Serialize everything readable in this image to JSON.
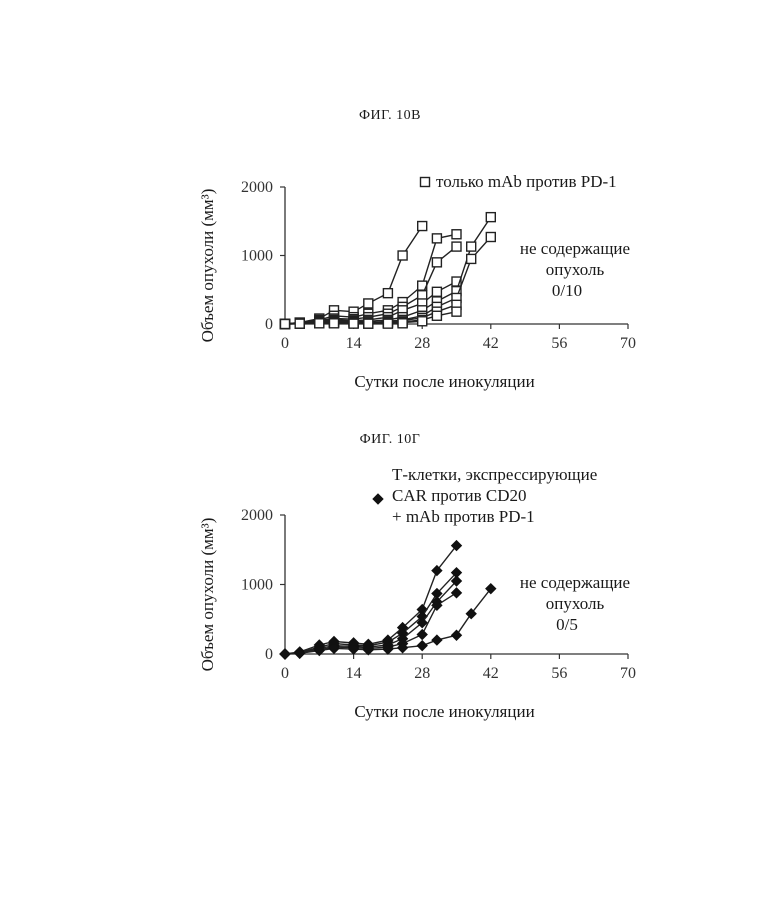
{
  "figures": {
    "fig1_title": "ФИГ. 10В",
    "fig2_title": "ФИГ. 10Г"
  },
  "chart_data": [
    {
      "type": "line",
      "xlabel": "Сутки после инокуляции",
      "ylabel": "Объем опухоли (мм³)",
      "xlim": [
        0,
        70
      ],
      "ylim": [
        0,
        2000
      ],
      "x_ticks": [
        "0",
        "14",
        "28",
        "42",
        "56",
        "70"
      ],
      "y_ticks": [
        "0",
        "1000",
        "2000"
      ],
      "marker": "square-open",
      "legend": {
        "label": "только mAb против PD-1",
        "position": "top-right"
      },
      "annotation": [
        "не содержащие",
        "опухоль",
        "0/10"
      ],
      "series": [
        {
          "x": [
            0,
            3,
            7,
            10,
            14,
            17,
            21,
            24,
            28
          ],
          "y": [
            0,
            20,
            80,
            200,
            180,
            300,
            450,
            1000,
            1430
          ]
        },
        {
          "x": [
            0,
            3,
            7,
            10,
            14,
            17,
            21,
            24,
            28,
            31,
            35
          ],
          "y": [
            0,
            20,
            60,
            120,
            100,
            150,
            200,
            320,
            560,
            1250,
            1310
          ]
        },
        {
          "x": [
            0,
            3,
            7,
            10,
            14,
            17,
            21,
            24,
            28,
            31,
            35
          ],
          "y": [
            0,
            20,
            50,
            80,
            70,
            100,
            150,
            250,
            420,
            900,
            1130
          ]
        },
        {
          "x": [
            0,
            3,
            7,
            10,
            14,
            17,
            21,
            24,
            28,
            31,
            35
          ],
          "y": [
            0,
            15,
            40,
            60,
            50,
            60,
            100,
            200,
            300,
            470,
            620
          ]
        },
        {
          "x": [
            0,
            3,
            7,
            10,
            14,
            17,
            21,
            24,
            28,
            31,
            35,
            38,
            42
          ],
          "y": [
            0,
            10,
            30,
            50,
            40,
            40,
            60,
            100,
            200,
            330,
            480,
            1130,
            1560
          ]
        },
        {
          "x": [
            0,
            3,
            7,
            10,
            14,
            17,
            21,
            24,
            28,
            31,
            35,
            38,
            42
          ],
          "y": [
            0,
            10,
            20,
            40,
            30,
            20,
            40,
            60,
            120,
            250,
            380,
            950,
            1270
          ]
        },
        {
          "x": [
            0,
            3,
            7,
            10,
            14,
            17,
            21,
            24,
            28,
            31,
            35
          ],
          "y": [
            0,
            10,
            20,
            30,
            20,
            20,
            30,
            50,
            90,
            180,
            280
          ]
        },
        {
          "x": [
            0,
            3,
            7,
            10,
            14,
            17,
            21,
            24,
            28,
            31,
            35
          ],
          "y": [
            0,
            5,
            15,
            20,
            15,
            10,
            20,
            30,
            60,
            120,
            180
          ]
        },
        {
          "x": [
            0,
            3,
            7,
            10,
            14,
            17,
            21,
            24,
            28
          ],
          "y": [
            0,
            5,
            10,
            15,
            10,
            5,
            10,
            20,
            40
          ]
        },
        {
          "x": [
            0,
            3,
            7,
            10,
            14,
            17,
            21,
            24
          ],
          "y": [
            0,
            5,
            10,
            10,
            5,
            5,
            5,
            10
          ]
        }
      ]
    },
    {
      "type": "line",
      "xlabel": "Сутки после инокуляции",
      "ylabel": "Объем опухоли (мм³)",
      "xlim": [
        0,
        70
      ],
      "ylim": [
        0,
        2000
      ],
      "x_ticks": [
        "0",
        "14",
        "28",
        "42",
        "56",
        "70"
      ],
      "y_ticks": [
        "0",
        "1000",
        "2000"
      ],
      "marker": "diamond-filled",
      "legend": {
        "label": [
          "Т-клетки, экспрессирующие",
          "CAR против CD20",
          "+ mAb против PD-1"
        ],
        "position": "top-right"
      },
      "annotation": [
        "не содержащие",
        "опухоль",
        "0/5"
      ],
      "series": [
        {
          "x": [
            0,
            3,
            7,
            10,
            14,
            17,
            21,
            24,
            28,
            31,
            35
          ],
          "y": [
            0,
            30,
            130,
            180,
            160,
            140,
            200,
            380,
            640,
            1200,
            1560
          ]
        },
        {
          "x": [
            0,
            3,
            7,
            10,
            14,
            17,
            21,
            24,
            28,
            31,
            35
          ],
          "y": [
            0,
            20,
            100,
            150,
            130,
            120,
            170,
            300,
            540,
            870,
            1170
          ]
        },
        {
          "x": [
            0,
            3,
            7,
            10,
            14,
            17,
            21,
            24,
            28,
            31,
            35
          ],
          "y": [
            0,
            20,
            80,
            120,
            110,
            100,
            130,
            220,
            450,
            750,
            1050
          ]
        },
        {
          "x": [
            0,
            3,
            7,
            10,
            14,
            17,
            21,
            24,
            28,
            31,
            35
          ],
          "y": [
            0,
            10,
            60,
            100,
            90,
            80,
            100,
            150,
            280,
            700,
            880
          ]
        },
        {
          "x": [
            0,
            3,
            7,
            10,
            14,
            17,
            21,
            24,
            28,
            31,
            35,
            38,
            42
          ],
          "y": [
            0,
            10,
            50,
            80,
            70,
            60,
            70,
            90,
            120,
            200,
            270,
            580,
            940
          ]
        }
      ]
    }
  ]
}
